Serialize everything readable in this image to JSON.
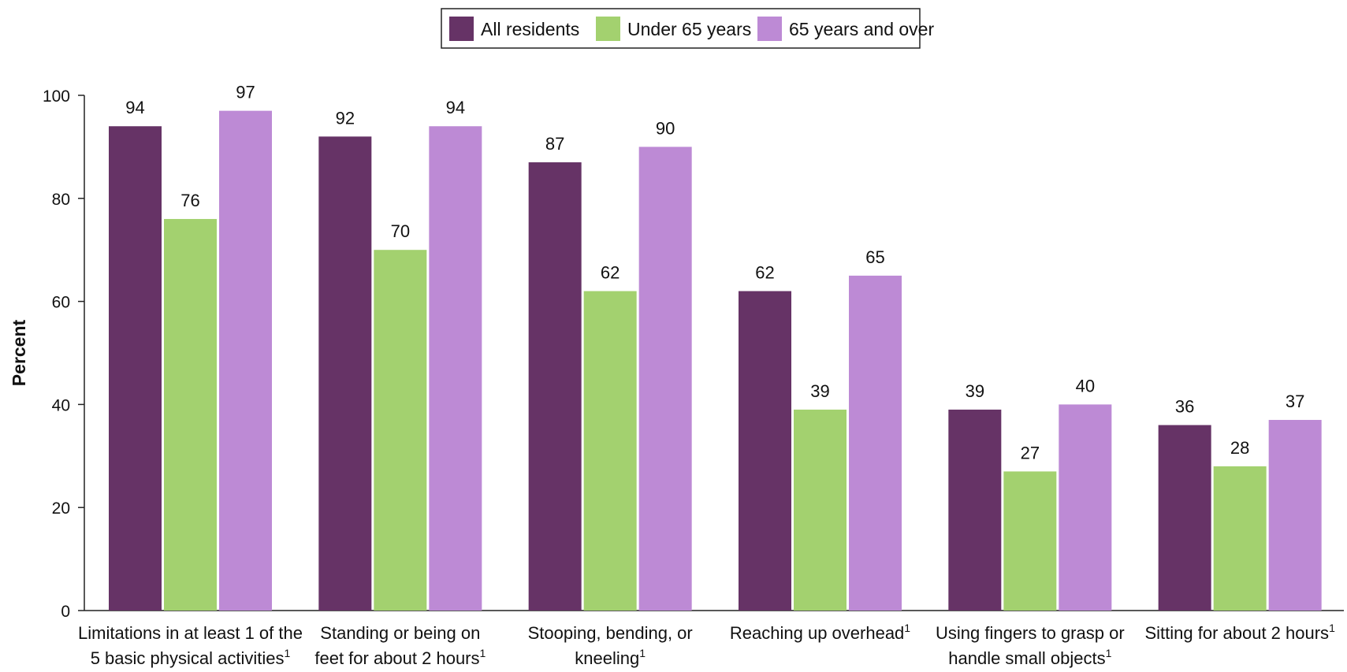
{
  "chart_data": {
    "type": "bar",
    "ylabel": "Percent",
    "xlabel": "",
    "ylim": [
      0,
      100
    ],
    "yticks": [
      0,
      20,
      40,
      60,
      80,
      100
    ],
    "grid": false,
    "legend_position": "top-center",
    "categories": [
      {
        "lines": [
          "Limitations in at least 1 of the",
          "5 basic physical activities"
        ],
        "footnote": "1"
      },
      {
        "lines": [
          "Standing or being on",
          "feet for about 2 hours"
        ],
        "footnote": "1"
      },
      {
        "lines": [
          "Stooping, bending, or",
          "kneeling"
        ],
        "footnote": "1"
      },
      {
        "lines": [
          "Reaching up overhead"
        ],
        "footnote": "1"
      },
      {
        "lines": [
          "Using fingers to grasp or",
          "handle small objects"
        ],
        "footnote": "1"
      },
      {
        "lines": [
          "Sitting for about 2 hours"
        ],
        "footnote": "1"
      }
    ],
    "series": [
      {
        "name": "All residents",
        "color": "#663366",
        "values": [
          94,
          92,
          87,
          62,
          39,
          36
        ]
      },
      {
        "name": "Under 65 years",
        "color": "#a3d16f",
        "values": [
          76,
          70,
          62,
          39,
          27,
          28
        ]
      },
      {
        "name": "65 years and over",
        "color": "#bd8ad5",
        "values": [
          97,
          94,
          90,
          65,
          40,
          37
        ]
      }
    ]
  }
}
